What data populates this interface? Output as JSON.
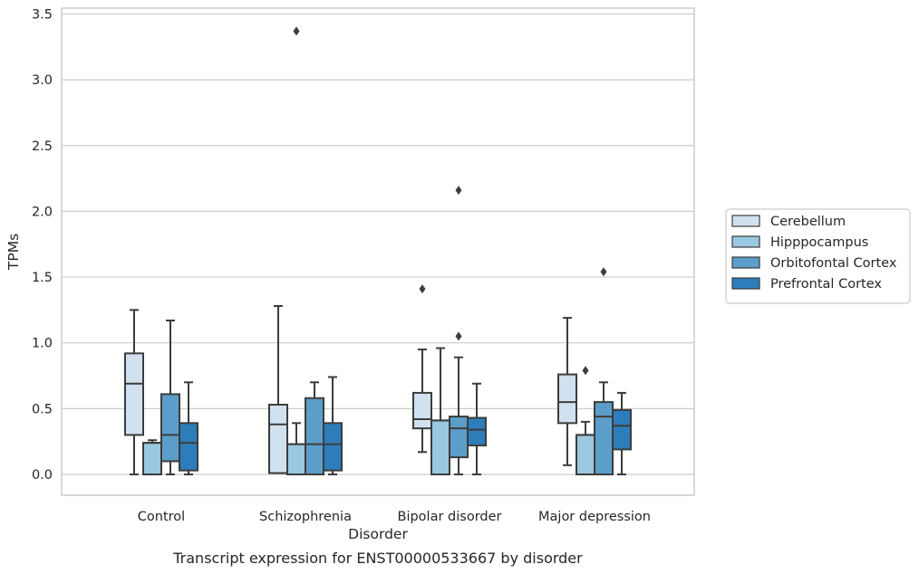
{
  "chart_data": {
    "type": "box",
    "caption": "Transcript expression for ENST00000533667 by disorder",
    "xlabel": "Disorder",
    "ylabel": "TPMs",
    "ylim": [
      -0.16,
      3.55
    ],
    "yticks": [
      "0.0",
      "0.5",
      "1.0",
      "1.5",
      "2.0",
      "2.5",
      "3.0",
      "3.5"
    ],
    "grid": true,
    "legend_position": "right",
    "categories": [
      "Control",
      "Schizophrenia",
      "Bipolar disorder",
      "Major depression"
    ],
    "series": [
      {
        "name": "Cerebellum",
        "color": "#d2e1f0",
        "boxes": [
          {
            "whislo": 0.0,
            "q1": 0.3,
            "med": 0.69,
            "q3": 0.92,
            "whishi": 1.25,
            "fliers": []
          },
          {
            "whislo": 0.01,
            "q1": 0.01,
            "med": 0.38,
            "q3": 0.53,
            "whishi": 1.28,
            "fliers": []
          },
          {
            "whislo": 0.17,
            "q1": 0.35,
            "med": 0.42,
            "q3": 0.62,
            "whishi": 0.95,
            "fliers": [
              1.41
            ]
          },
          {
            "whislo": 0.07,
            "q1": 0.39,
            "med": 0.55,
            "q3": 0.76,
            "whishi": 1.19,
            "fliers": []
          }
        ]
      },
      {
        "name": "Hipppocampus",
        "color": "#9ac8e0",
        "boxes": [
          {
            "whislo": 0.0,
            "q1": 0.0,
            "med": 0.24,
            "q3": 0.24,
            "whishi": 0.26,
            "fliers": []
          },
          {
            "whislo": 0.0,
            "q1": 0.0,
            "med": 0.23,
            "q3": 0.23,
            "whishi": 0.39,
            "fliers": [
              3.37
            ]
          },
          {
            "whislo": 0.0,
            "q1": 0.0,
            "med": 0.41,
            "q3": 0.41,
            "whishi": 0.96,
            "fliers": []
          },
          {
            "whislo": 0.0,
            "q1": 0.0,
            "med": 0.3,
            "q3": 0.3,
            "whishi": 0.4,
            "fliers": [
              0.79
            ]
          }
        ]
      },
      {
        "name": "Orbitofontal Cortex",
        "color": "#5b9ec9",
        "boxes": [
          {
            "whislo": 0.0,
            "q1": 0.1,
            "med": 0.3,
            "q3": 0.61,
            "whishi": 1.17,
            "fliers": []
          },
          {
            "whislo": 0.0,
            "q1": 0.0,
            "med": 0.23,
            "q3": 0.58,
            "whishi": 0.7,
            "fliers": []
          },
          {
            "whislo": 0.0,
            "q1": 0.13,
            "med": 0.35,
            "q3": 0.44,
            "whishi": 0.89,
            "fliers": [
              2.16,
              1.05
            ]
          },
          {
            "whislo": 0.0,
            "q1": 0.0,
            "med": 0.44,
            "q3": 0.55,
            "whishi": 0.7,
            "fliers": [
              1.54
            ]
          }
        ]
      },
      {
        "name": "Prefrontal Cortex",
        "color": "#2d7dbb",
        "boxes": [
          {
            "whislo": 0.0,
            "q1": 0.03,
            "med": 0.24,
            "q3": 0.39,
            "whishi": 0.7,
            "fliers": []
          },
          {
            "whislo": 0.0,
            "q1": 0.03,
            "med": 0.23,
            "q3": 0.39,
            "whishi": 0.74,
            "fliers": []
          },
          {
            "whislo": 0.0,
            "q1": 0.22,
            "med": 0.34,
            "q3": 0.43,
            "whishi": 0.69,
            "fliers": []
          },
          {
            "whislo": 0.0,
            "q1": 0.19,
            "med": 0.37,
            "q3": 0.49,
            "whishi": 0.62,
            "fliers": []
          }
        ]
      }
    ]
  }
}
